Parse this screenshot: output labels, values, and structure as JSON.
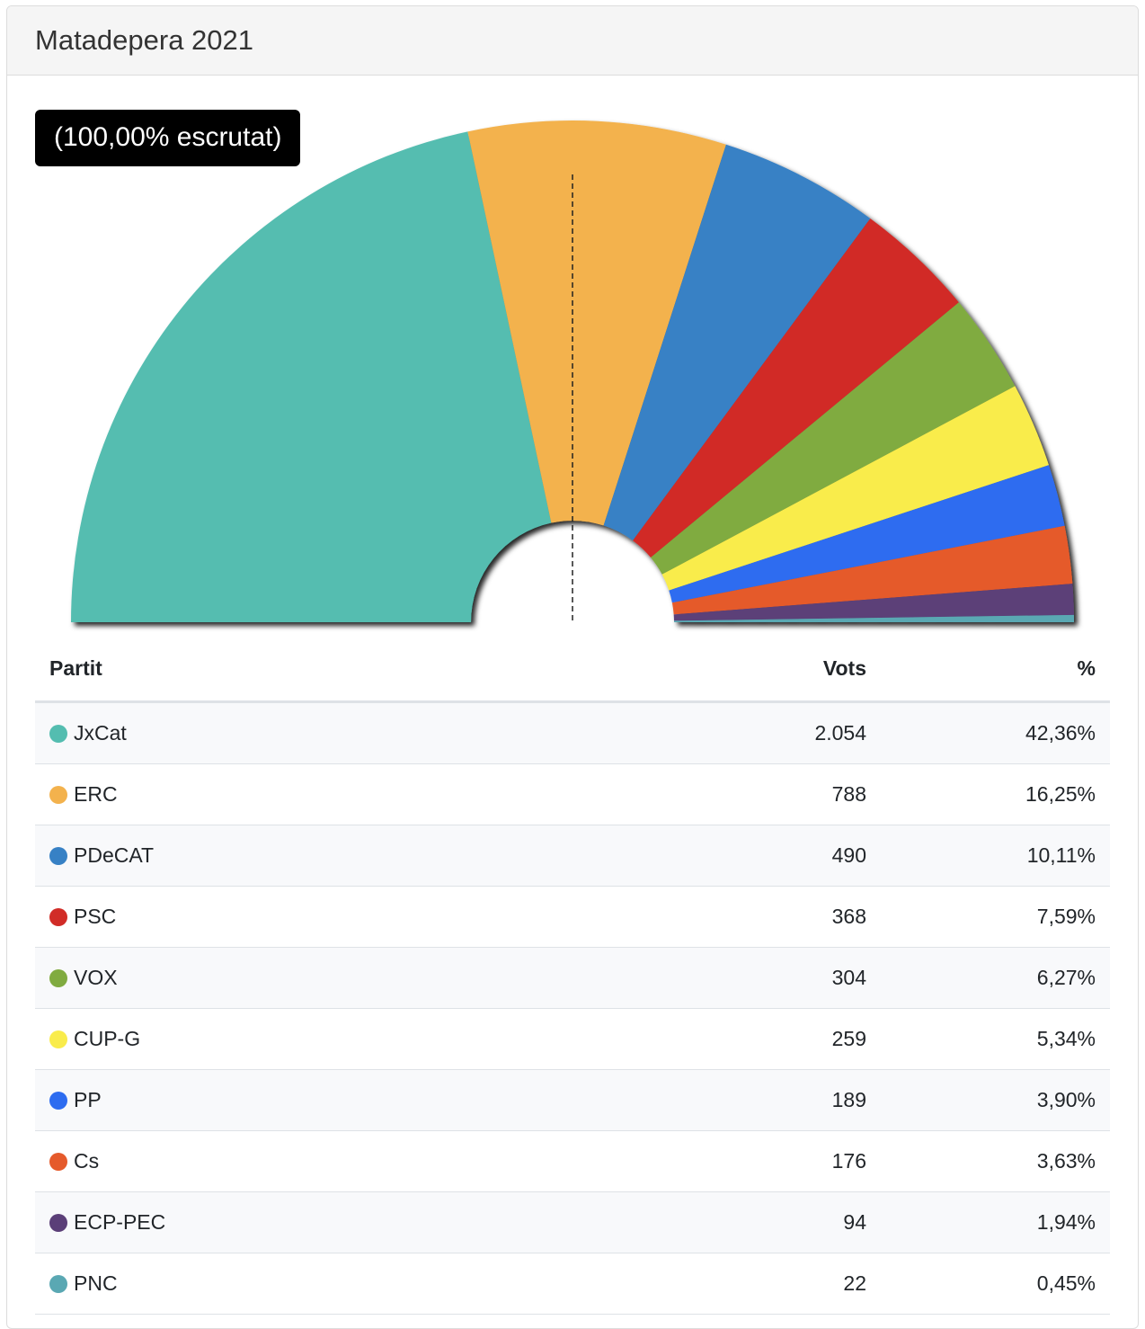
{
  "header": {
    "title": "Matadepera 2021"
  },
  "badge": {
    "label": "(100,00% escrutat)"
  },
  "table": {
    "headers": {
      "party": "Partit",
      "votes": "Vots",
      "percent": "%"
    }
  },
  "chart_data": {
    "type": "pie",
    "subtype": "semicircle",
    "majority_marker": "dashed vertical line at center",
    "series": [
      {
        "party": "JxCat",
        "votes": 2054,
        "votes_label": "2.054",
        "percent": 42.36,
        "percent_label": "42,36%",
        "color": "#54bdb0"
      },
      {
        "party": "ERC",
        "votes": 788,
        "votes_label": "788",
        "percent": 16.25,
        "percent_label": "16,25%",
        "color": "#f3b24d"
      },
      {
        "party": "PDeCAT",
        "votes": 490,
        "votes_label": "490",
        "percent": 10.11,
        "percent_label": "10,11%",
        "color": "#3781c5"
      },
      {
        "party": "PSC",
        "votes": 368,
        "votes_label": "368",
        "percent": 7.59,
        "percent_label": "7,59%",
        "color": "#d12c27"
      },
      {
        "party": "VOX",
        "votes": 304,
        "votes_label": "304",
        "percent": 6.27,
        "percent_label": "6,27%",
        "color": "#80ab40"
      },
      {
        "party": "CUP-G",
        "votes": 259,
        "votes_label": "259",
        "percent": 5.34,
        "percent_label": "5,34%",
        "color": "#f9ec4b"
      },
      {
        "party": "PP",
        "votes": 189,
        "votes_label": "189",
        "percent": 3.9,
        "percent_label": "3,90%",
        "color": "#2d6cf0"
      },
      {
        "party": "Cs",
        "votes": 176,
        "votes_label": "176",
        "percent": 3.63,
        "percent_label": "3,63%",
        "color": "#e55a2b"
      },
      {
        "party": "ECP-PEC",
        "votes": 94,
        "votes_label": "94",
        "percent": 1.94,
        "percent_label": "1,94%",
        "color": "#5b3f78"
      },
      {
        "party": "PNC",
        "votes": 22,
        "votes_label": "22",
        "percent": 0.45,
        "percent_label": "0,45%",
        "color": "#5aa8b3"
      }
    ]
  }
}
